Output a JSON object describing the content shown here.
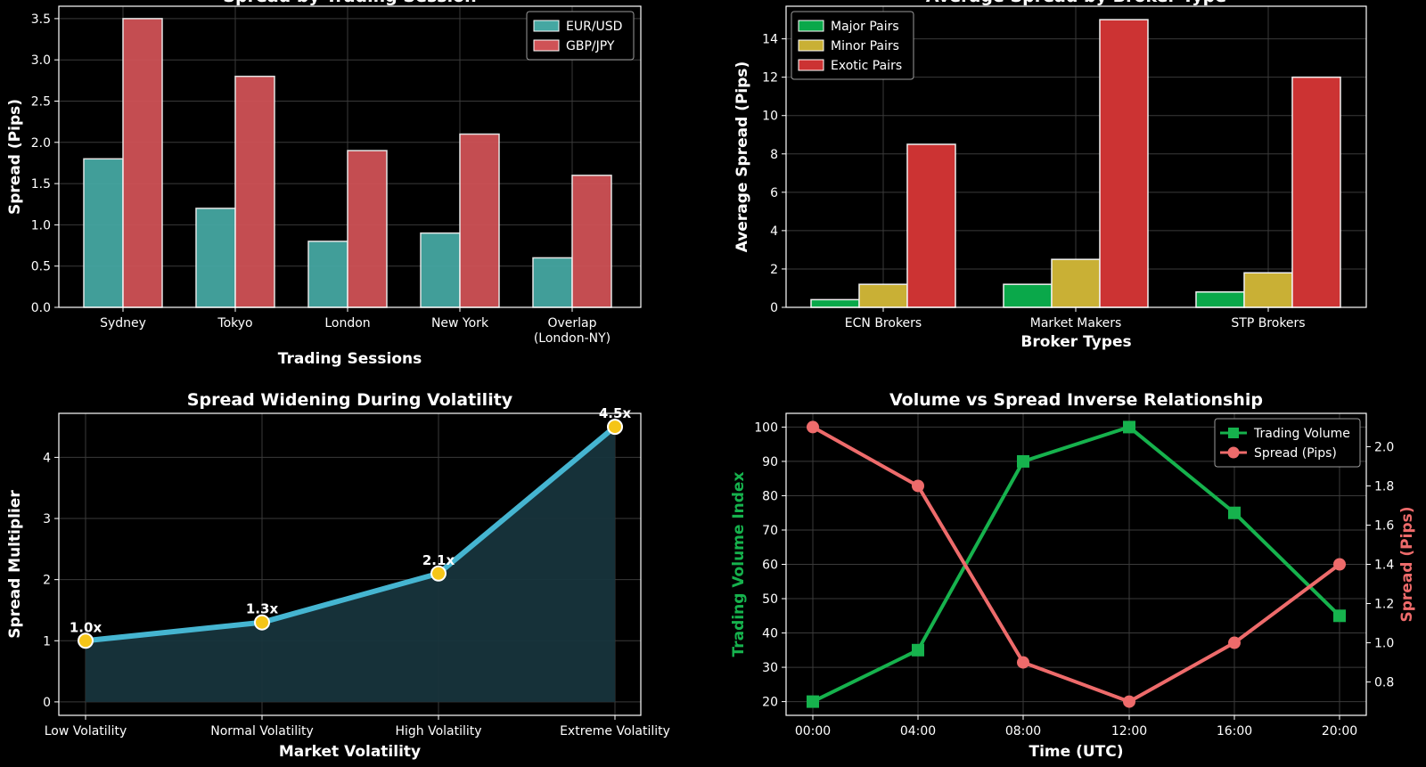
{
  "colors": {
    "background": "#000000",
    "axis": "#ffffff",
    "grid": "#3a3a3a",
    "eurusd": "#45a7a2",
    "gbpjpy": "#cf5256",
    "major": "#0aa84a",
    "minor": "#c9b035",
    "exotic": "#cc3333",
    "vol_line": "#45b5d1",
    "vol_fill": "#17343c",
    "vol_marker": "#f5c518",
    "volume": "#16b24d",
    "spread": "#ee6b6b"
  },
  "chart_data": [
    {
      "id": "sessions",
      "type": "bar",
      "title": "Spread by Trading Session",
      "xlabel": "Trading Sessions",
      "ylabel": "Spread (Pips)",
      "categories": [
        "Sydney",
        "Tokyo",
        "London",
        "New York",
        "Overlap\n(London-NY)"
      ],
      "series": [
        {
          "name": "EUR/USD",
          "values": [
            1.8,
            1.2,
            0.8,
            0.9,
            0.6
          ]
        },
        {
          "name": "GBP/JPY",
          "values": [
            3.5,
            2.8,
            1.9,
            2.1,
            1.6
          ]
        }
      ],
      "ylim": [
        0,
        3.65
      ],
      "yticks": [
        0.0,
        0.5,
        1.0,
        1.5,
        2.0,
        2.5,
        3.0,
        3.5
      ],
      "ytick_labels": [
        "0.0",
        "0.5",
        "1.0",
        "1.5",
        "2.0",
        "2.5",
        "3.0",
        "3.5"
      ],
      "legend": "top-right",
      "grid": true
    },
    {
      "id": "brokers",
      "type": "bar",
      "title": "Average Spread by Broker Type",
      "xlabel": "Broker Types",
      "ylabel": "Average Spread (Pips)",
      "categories": [
        "ECN Brokers",
        "Market Makers",
        "STP Brokers"
      ],
      "series": [
        {
          "name": "Major Pairs",
          "values": [
            0.4,
            1.2,
            0.8
          ]
        },
        {
          "name": "Minor Pairs",
          "values": [
            1.2,
            2.5,
            1.8
          ]
        },
        {
          "name": "Exotic Pairs",
          "values": [
            8.5,
            15,
            12
          ]
        }
      ],
      "ylim": [
        0,
        15.7
      ],
      "yticks": [
        0,
        2,
        4,
        6,
        8,
        10,
        12,
        14
      ],
      "ytick_labels": [
        "0",
        "2",
        "4",
        "6",
        "8",
        "10",
        "12",
        "14"
      ],
      "legend": "top-left",
      "grid": true
    },
    {
      "id": "volatility",
      "type": "area",
      "title": "Spread Widening During Volatility",
      "xlabel": "Market Volatility",
      "ylabel": "Spread Multiplier",
      "categories": [
        "Low Volatility",
        "Normal Volatility",
        "High Volatility",
        "Extreme Volatility"
      ],
      "values": [
        1.0,
        1.3,
        2.1,
        4.5
      ],
      "point_labels": [
        "1.0x",
        "1.3x",
        "2.1x",
        "4.5x"
      ],
      "ylim": [
        -0.22,
        4.72
      ],
      "yticks": [
        0,
        1,
        2,
        3,
        4
      ],
      "ytick_labels": [
        "0",
        "1",
        "2",
        "3",
        "4"
      ],
      "grid": true
    },
    {
      "id": "volume_spread",
      "type": "line",
      "title": "Volume vs Spread Inverse Relationship",
      "xlabel": "Time (UTC)",
      "ylabel": "Trading Volume Index",
      "ylabel_right": "Spread (Pips)",
      "categories": [
        "00:00",
        "04:00",
        "08:00",
        "12:00",
        "16:00",
        "20:00"
      ],
      "series": [
        {
          "name": "Trading Volume",
          "axis": "left",
          "marker": "square",
          "values": [
            20,
            35,
            90,
            100,
            75,
            45
          ]
        },
        {
          "name": "Spread (Pips)",
          "axis": "right",
          "marker": "circle",
          "values": [
            2.1,
            1.8,
            0.9,
            0.7,
            1.0,
            1.4
          ]
        }
      ],
      "ylim": [
        16,
        104
      ],
      "yticks": [
        20,
        30,
        40,
        50,
        60,
        70,
        80,
        90,
        100
      ],
      "ytick_labels": [
        "20",
        "30",
        "40",
        "50",
        "60",
        "70",
        "80",
        "90",
        "100"
      ],
      "ylim_right": [
        0.63,
        2.17
      ],
      "yticks_right": [
        0.8,
        1.0,
        1.2,
        1.4,
        1.6,
        1.8,
        2.0
      ],
      "ytick_labels_right": [
        "0.8",
        "1.0",
        "1.2",
        "1.4",
        "1.6",
        "1.8",
        "2.0"
      ],
      "legend": "top-right",
      "grid": true
    }
  ]
}
